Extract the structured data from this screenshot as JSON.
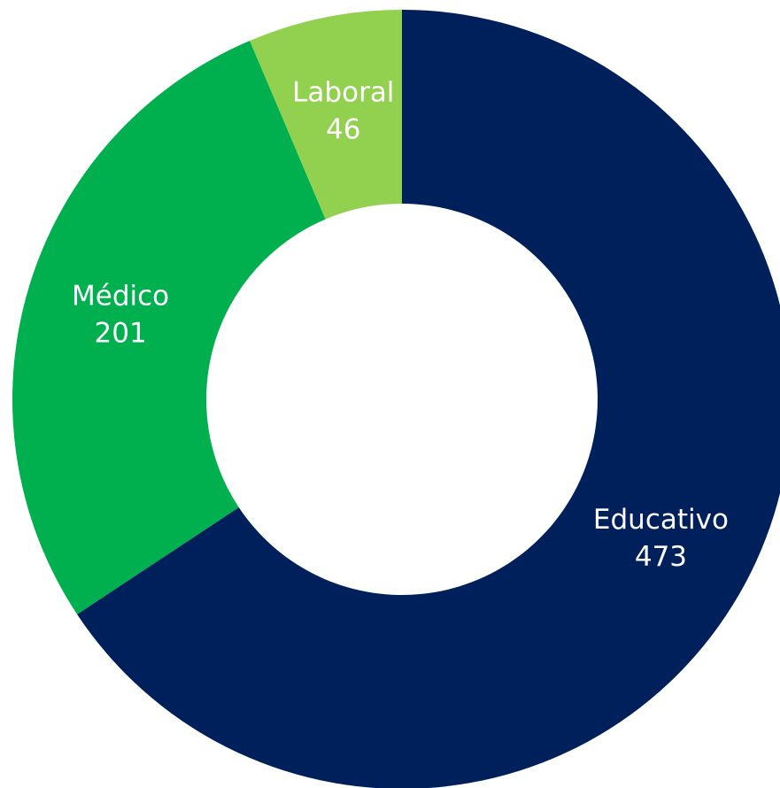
{
  "chart_data": {
    "type": "pie",
    "variant": "donut",
    "slices": [
      {
        "label": "Educativo",
        "value": 473,
        "value_label": "473",
        "color": "#00205C"
      },
      {
        "label": "Médico",
        "value": 201,
        "value_label": "201",
        "color": "#00B04F"
      },
      {
        "label": "Laboral",
        "value": 46,
        "value_label": "46",
        "color": "#92D050"
      }
    ],
    "start": "top",
    "direction": "clockwise",
    "legend": "none"
  }
}
